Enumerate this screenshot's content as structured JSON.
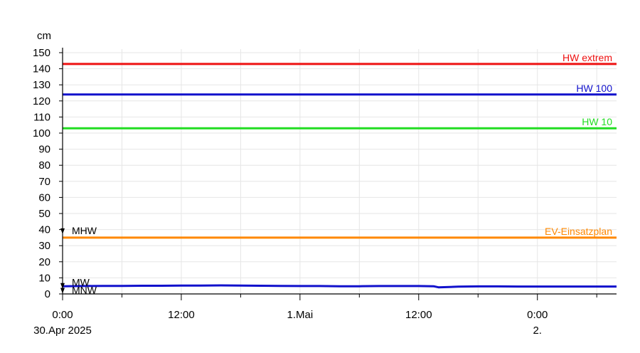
{
  "chart_data": {
    "type": "line",
    "y_unit": "cm",
    "ylim": [
      0,
      150
    ],
    "y_ticks": [
      0,
      10,
      20,
      30,
      40,
      50,
      60,
      70,
      80,
      90,
      100,
      110,
      120,
      130,
      140,
      150
    ],
    "x_range_hours": [
      0,
      56
    ],
    "x_ticks": [
      {
        "hour": 0,
        "line1": "0:00",
        "line2": "30.Apr 2025"
      },
      {
        "hour": 12,
        "line1": "12:00",
        "line2": ""
      },
      {
        "hour": 24,
        "line1": "1.Mai",
        "line2": ""
      },
      {
        "hour": 36,
        "line1": "12:00",
        "line2": ""
      },
      {
        "hour": 48,
        "line1": "0:00",
        "line2": "2."
      }
    ],
    "reference_lines": [
      {
        "name": "HW extrem",
        "value": 143,
        "color": "#ee1111"
      },
      {
        "name": "HW 100",
        "value": 124,
        "color": "#1111cc"
      },
      {
        "name": "HW 10",
        "value": 103,
        "color": "#22dd22"
      },
      {
        "name": "EV-Einsatzplan",
        "value": 35,
        "color": "#ff8800"
      }
    ],
    "markers": [
      {
        "name": "MHW",
        "value": 39
      },
      {
        "name": "MW",
        "value": 5
      },
      {
        "name": "MNW",
        "value": 2
      }
    ],
    "series": [
      {
        "color": "#1111cc",
        "x": [
          0,
          2,
          4,
          6,
          8,
          10,
          12,
          14,
          16,
          18,
          20,
          22,
          24,
          26,
          28,
          30,
          32,
          34,
          36,
          37.5,
          38,
          40,
          42,
          44,
          46,
          48,
          50,
          52,
          54,
          56
        ],
        "values": [
          4.8,
          4.9,
          5.0,
          5.0,
          5.1,
          5.1,
          5.2,
          5.2,
          5.3,
          5.2,
          5.1,
          5.0,
          4.9,
          4.9,
          4.8,
          4.8,
          4.9,
          4.9,
          4.9,
          4.8,
          4.1,
          4.5,
          4.7,
          4.7,
          4.6,
          4.6,
          4.6,
          4.6,
          4.6,
          4.6
        ]
      }
    ],
    "grid": true
  }
}
